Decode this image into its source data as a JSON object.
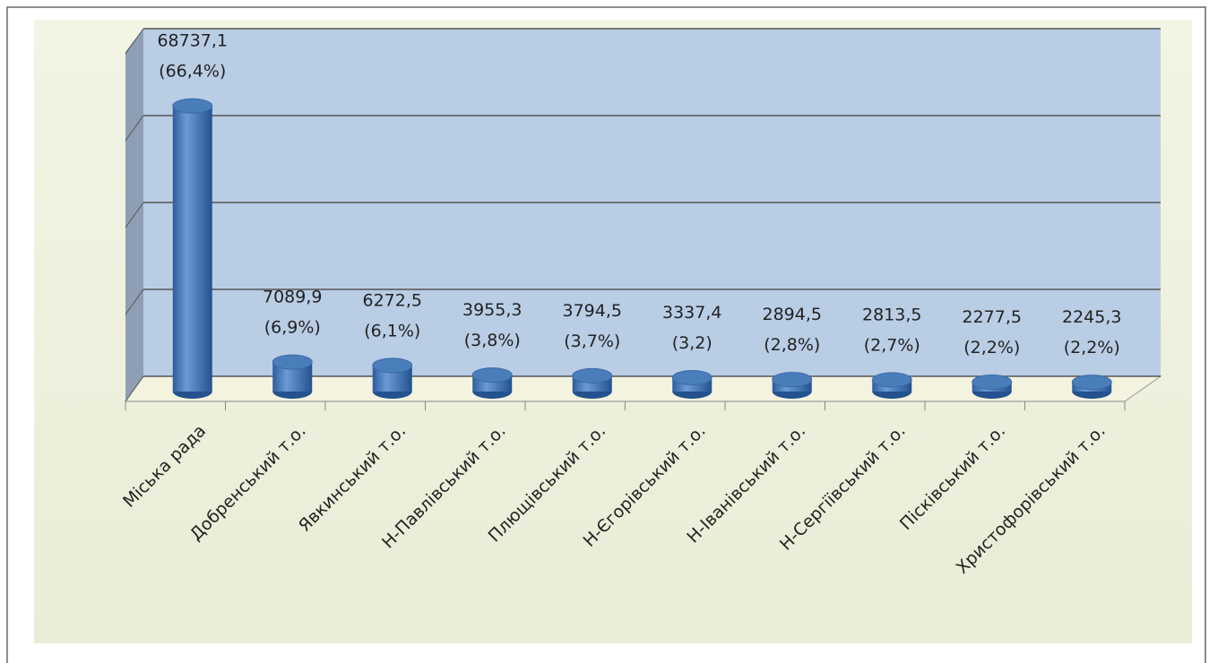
{
  "chart_data": {
    "type": "bar",
    "categories": [
      "Міська рада",
      "Добренський т.о.",
      "Явкинський т.о.",
      "Н-Павлівський т.о.",
      "Плющівський т.о.",
      "Н-Єгорівський т.о.",
      "Н-Іванівський т.о.",
      "Н-Сергіївський т.о.",
      "Пісківський т.о.",
      "Христофорівський т.о."
    ],
    "values": [
      68737.1,
      7089.9,
      6272.5,
      3955.3,
      3794.5,
      3337.4,
      2894.5,
      2813.5,
      2277.5,
      2245.3
    ],
    "value_labels": [
      "68737,1",
      "7089,9",
      "6272,5",
      "3955,3",
      "3794,5",
      "3337,4",
      "2894,5",
      "2813,5",
      "2277,5",
      "2245,3"
    ],
    "shares": [
      66.4,
      6.9,
      6.1,
      3.8,
      3.7,
      3.2,
      2.8,
      2.7,
      2.2,
      2.2
    ],
    "share_labels": [
      "(66,4%)",
      "(6,9%)",
      "(6,1%)",
      "(3,8%)",
      "(3,7%)",
      "(3,2)",
      "(2,8%)",
      "(2,7%)",
      "(2,2%)",
      "(2,2%)"
    ],
    "color": "#4a7ebb",
    "ylim": [
      0,
      80000
    ],
    "yticks": [
      0,
      20000,
      40000,
      60000,
      80000
    ],
    "grid": true
  }
}
